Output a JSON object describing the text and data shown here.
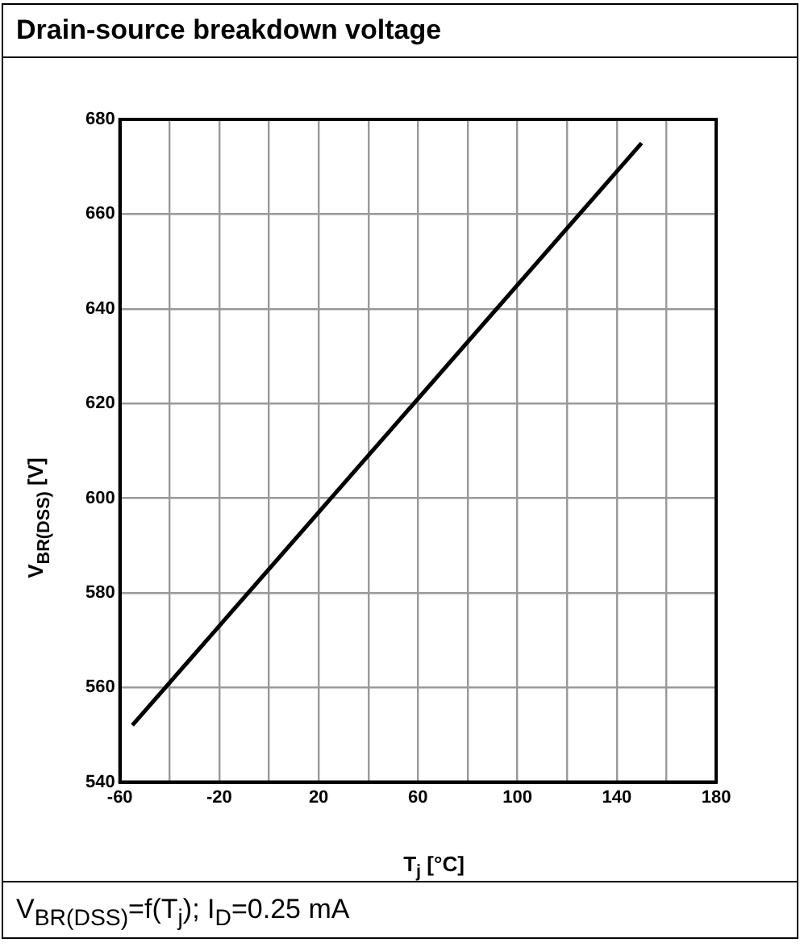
{
  "chart_data": {
    "type": "line",
    "title": "Drain-source breakdown voltage",
    "xlabel": "T$_{j}$ [°C]",
    "ylabel": "V$_{BR(DSS)}$ [V]",
    "annotations": [
      "V$_{BR(DSS)}$=f(T$_{j}$); I$_{D}$=0.25 mA"
    ],
    "series": [
      {
        "color": "#000000",
        "x": [
          -55,
          150
        ],
        "values": [
          552,
          675
        ]
      }
    ],
    "xlim": [
      -60,
      180
    ],
    "xticks": [
      -60,
      {
        "value": -40,
        "label": null
      },
      -20,
      {
        "value": 0,
        "label": null
      },
      20,
      {
        "value": 40,
        "label": null
      },
      60,
      {
        "value": 80,
        "label": null
      },
      100,
      {
        "value": 120,
        "label": null
      },
      140,
      {
        "value": 160,
        "label": null
      },
      180
    ],
    "ylim": [
      540,
      680
    ],
    "yticks": [
      540,
      560,
      580,
      600,
      620,
      640,
      660,
      680
    ],
    "grid": true,
    "legend": false,
    "marker": "none",
    "line_style": "solid"
  }
}
